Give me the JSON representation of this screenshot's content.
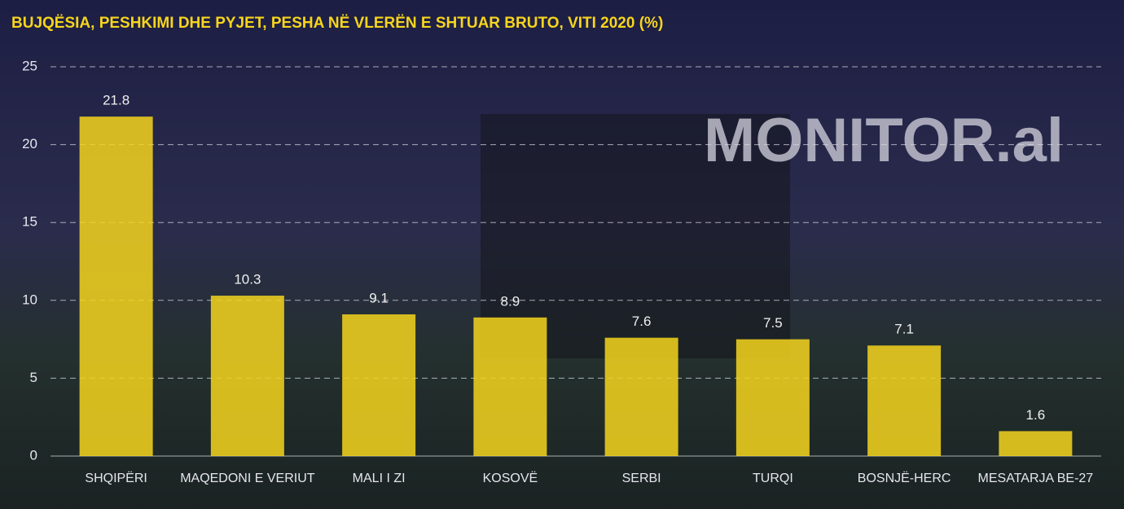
{
  "chart_data": {
    "type": "bar",
    "title": "BUJQËSIA, PESHKIMI DHE PYJET, PESHA NË VLERËN E SHTUAR BRUTO, VITI 2020 (%)",
    "watermark": "MONITOR.al",
    "categories": [
      "SHQIPËRI",
      "MAQEDONI E VERIUT",
      "MALI I ZI",
      "KOSOVË",
      "SERBI",
      "TURQI",
      "BOSNJË-HERC",
      "MESATARJA BE-27"
    ],
    "values": [
      21.8,
      10.3,
      9.1,
      8.9,
      7.6,
      7.5,
      7.1,
      1.6
    ],
    "color": "#f6d51d",
    "ylim": [
      0,
      25
    ],
    "yticks": [
      0,
      5,
      10,
      15,
      20,
      25
    ],
    "grid": true
  }
}
